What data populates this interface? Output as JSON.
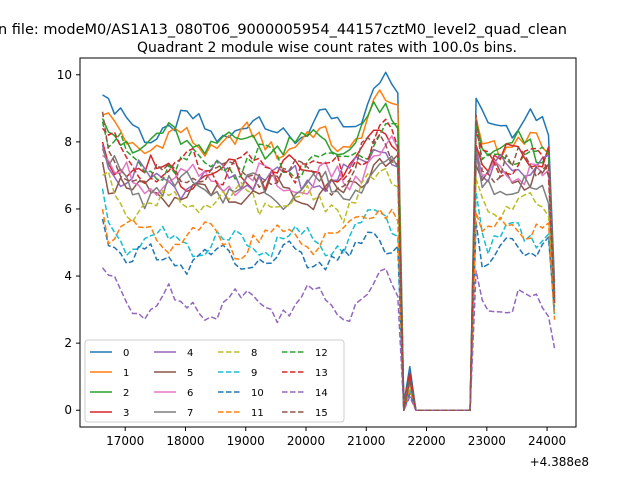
{
  "figure": {
    "suptitle": "n file: modeM0/AS1A13_080T06_9000005954_44157cztM0_level2_quad_clean",
    "title": "Quadrant 2 module wise count rates with 100.0s bins.",
    "x_offset_label": "+4.388e8"
  },
  "chart_data": {
    "type": "line",
    "title": "Quadrant 2 module wise count rates with 100.0s bins.",
    "xlabel": "",
    "ylabel": "",
    "x_offset": 438800000,
    "xlim": [
      16250,
      24480
    ],
    "ylim": [
      -0.5,
      10.5
    ],
    "x_ticks": [
      17000,
      18000,
      19000,
      20000,
      21000,
      22000,
      23000,
      24000
    ],
    "x_tick_labels": [
      "17000",
      "18000",
      "19000",
      "20000",
      "21000",
      "22000",
      "23000",
      "24000"
    ],
    "y_ticks": [
      0,
      2,
      4,
      6,
      8,
      10
    ],
    "y_tick_labels": [
      "0",
      "2",
      "4",
      "6",
      "8",
      "10"
    ],
    "grid": false,
    "legend": {
      "position": "lower-left",
      "columns": 4
    },
    "segments": {
      "seg1": {
        "start": 16623,
        "end": 21523,
        "step": 100
      },
      "gap": {
        "start": 21623,
        "values_x": [
          21623,
          21723,
          21823,
          21923,
          22023,
          22123,
          22223,
          22323,
          22423,
          22523,
          22623,
          22723
        ]
      },
      "seg2": {
        "start": 22823,
        "end": 24123,
        "step": 100
      }
    },
    "series": [
      {
        "name": "0",
        "color": "#1f77b4",
        "dash": "solid",
        "level1": 8.4,
        "level2": 8.5,
        "start": 9.4,
        "peak": 9.95,
        "gapv": [
          0.2,
          1.3
        ],
        "end": 3.8
      },
      {
        "name": "1",
        "color": "#ff7f0e",
        "dash": "solid",
        "level1": 8.0,
        "level2": 7.9,
        "start": 8.8,
        "peak": 9.2,
        "gapv": [
          0.0,
          1.0
        ],
        "end": 3.6
      },
      {
        "name": "2",
        "color": "#2ca02c",
        "dash": "solid",
        "level1": 8.0,
        "level2": 7.8,
        "start": 8.7,
        "peak": 8.8,
        "gapv": [
          0.1,
          1.0
        ],
        "end": 3.5
      },
      {
        "name": "3",
        "color": "#d62728",
        "dash": "solid",
        "level1": 7.1,
        "level2": 7.6,
        "start": 8.0,
        "peak": 8.6,
        "gapv": [
          0.1,
          1.1
        ],
        "end": 3.4
      },
      {
        "name": "4",
        "color": "#9467bd",
        "dash": "solid",
        "level1": 6.9,
        "level2": 7.2,
        "start": 7.9,
        "peak": 8.0,
        "gapv": [
          0.1,
          0.9
        ],
        "end": 3.5
      },
      {
        "name": "5",
        "color": "#8c564b",
        "dash": "solid",
        "level1": 6.4,
        "level2": 7.0,
        "start": 7.4,
        "peak": 7.8,
        "gapv": [
          0.0,
          0.9
        ],
        "end": 3.3
      },
      {
        "name": "6",
        "color": "#e377c2",
        "dash": "solid",
        "level1": 6.8,
        "level2": 7.0,
        "start": 7.6,
        "peak": 7.9,
        "gapv": [
          0.1,
          0.9
        ],
        "end": 3.3
      },
      {
        "name": "7",
        "color": "#7f7f7f",
        "dash": "solid",
        "level1": 6.6,
        "level2": 6.6,
        "start": 7.8,
        "peak": 7.4,
        "gapv": [
          0.0,
          0.8
        ],
        "end": 3.2
      },
      {
        "name": "8",
        "color": "#bcbd22",
        "dash": "dashed",
        "level1": 6.2,
        "level2": 6.1,
        "start": 7.0,
        "peak": 6.9,
        "gapv": [
          0.0,
          0.8
        ],
        "end": 3.1
      },
      {
        "name": "9",
        "color": "#17becf",
        "dash": "dashed",
        "level1": 5.0,
        "level2": 5.2,
        "start": 6.6,
        "peak": 5.7,
        "gapv": [
          0.0,
          0.6
        ],
        "end": 2.8
      },
      {
        "name": "10",
        "color": "#1f77b4",
        "dash": "dashed",
        "level1": 4.5,
        "level2": 4.8,
        "start": 5.7,
        "peak": 5.3,
        "gapv": [
          0.0,
          0.5
        ],
        "end": 2.9
      },
      {
        "name": "11",
        "color": "#ff7f0e",
        "dash": "dashed",
        "level1": 5.1,
        "level2": 5.3,
        "start": 6.0,
        "peak": 6.2,
        "gapv": [
          0.0,
          0.6
        ],
        "end": 2.7
      },
      {
        "name": "12",
        "color": "#2ca02c",
        "dash": "dashed",
        "level1": 7.4,
        "level2": 7.6,
        "start": 8.6,
        "peak": 8.4,
        "gapv": [
          0.1,
          0.9
        ],
        "end": 3.3
      },
      {
        "name": "13",
        "color": "#d62728",
        "dash": "dashed",
        "level1": 7.3,
        "level2": 7.3,
        "start": 8.4,
        "peak": 8.2,
        "gapv": [
          0.0,
          0.9
        ],
        "end": 3.2
      },
      {
        "name": "14",
        "color": "#9467bd",
        "dash": "dashed",
        "level1": 3.2,
        "level2": 3.2,
        "start": 4.25,
        "peak": 3.8,
        "gapv": [
          0.0,
          0.4
        ],
        "end": 1.85
      },
      {
        "name": "15",
        "color": "#8c564b",
        "dash": "dashed",
        "level1": 7.0,
        "level2": 7.3,
        "start": 8.9,
        "peak": 8.0,
        "gapv": [
          0.0,
          0.9
        ],
        "end": 3.2
      }
    ]
  }
}
